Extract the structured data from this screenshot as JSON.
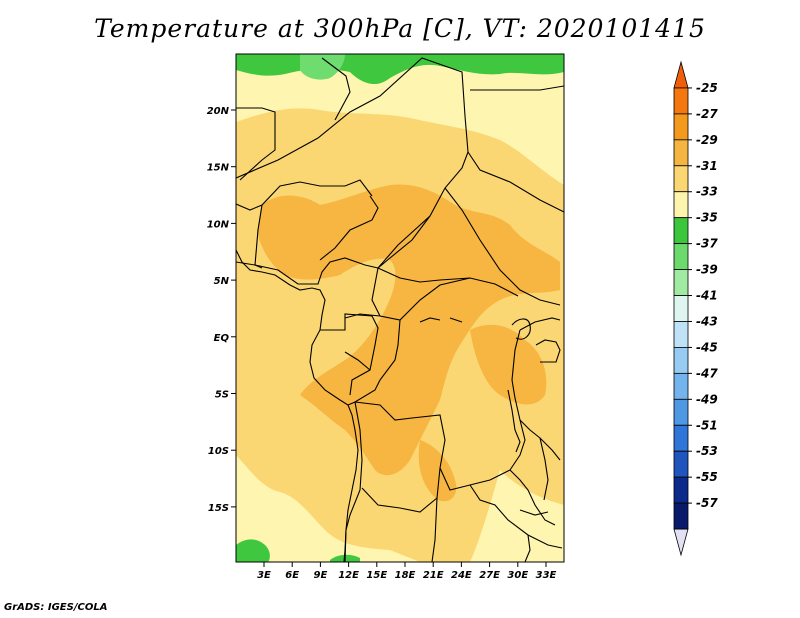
{
  "title": "Temperature at 300hPa [C], VT: 2020101415",
  "footer": "GrADS: IGES/COLA",
  "map": {
    "lat_labels": [
      "20N",
      "15N",
      "10N",
      "5N",
      "EQ",
      "5S",
      "10S",
      "15S"
    ],
    "lon_labels": [
      "3E",
      "6E",
      "9E",
      "12E",
      "15E",
      "18E",
      "21E",
      "24E",
      "27E",
      "30E",
      "33E"
    ],
    "field_colors": {
      "pale_yellow": "#fdf5b0",
      "light_orange": "#fbd774",
      "orange": "#f7b542",
      "dark_orange": "#f19a22",
      "green": "#3fc73f",
      "light_green": "#6fdc6f"
    }
  },
  "colorbar": {
    "labels": [
      "-25",
      "-27",
      "-29",
      "-31",
      "-33",
      "-35",
      "-37",
      "-39",
      "-41",
      "-43",
      "-45",
      "-47",
      "-49",
      "-51",
      "-53",
      "-55",
      "-57"
    ],
    "colors": [
      "#f05e0c",
      "#f4780f",
      "#f39a1d",
      "#f5b542",
      "#fbd773",
      "#fef5ad",
      "#3cc63c",
      "#6bd96b",
      "#a1eaa1",
      "#dff6f0",
      "#bfe2f7",
      "#98cbf2",
      "#74b4ec",
      "#4e98e4",
      "#3075d8",
      "#1f55bd",
      "#0c2a8a",
      "#0a1a6a",
      "#e2e0f2"
    ]
  }
}
